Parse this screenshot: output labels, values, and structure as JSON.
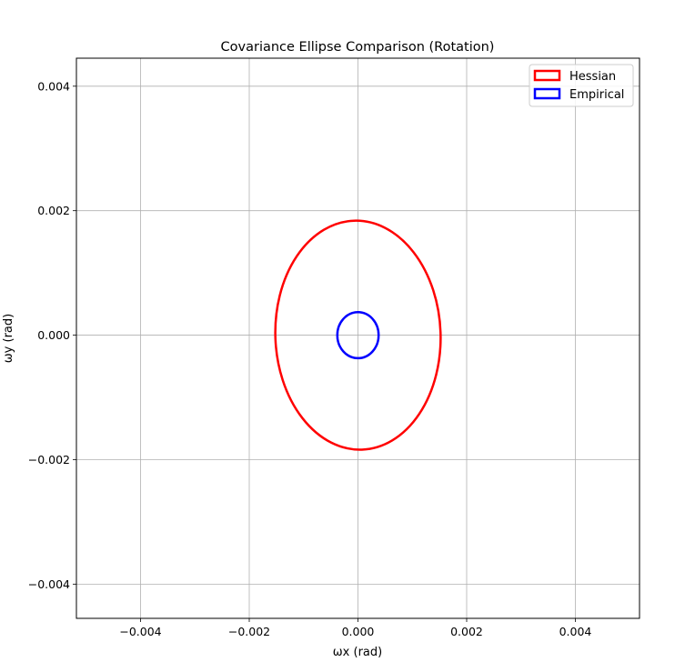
{
  "chart_data": {
    "type": "line",
    "title": "Covariance Ellipse Comparison (Rotation)",
    "xlabel": "ωx (rad)",
    "ylabel": "ωy (rad)",
    "xlim": [
      -0.00518,
      0.00518
    ],
    "ylim": [
      -0.00455,
      0.00445
    ],
    "xticks": [
      -0.004,
      -0.002,
      0.0,
      0.002,
      0.004
    ],
    "yticks": [
      -0.004,
      -0.002,
      0.0,
      0.002,
      0.004
    ],
    "xtick_labels": [
      "−0.004",
      "−0.002",
      "0.000",
      "0.002",
      "0.004"
    ],
    "ytick_labels": [
      "−0.004",
      "−0.002",
      "0.000",
      "0.002",
      "0.004"
    ],
    "grid": true,
    "legend_position": "top-right",
    "series": [
      {
        "name": "Hessian",
        "shape": "ellipse",
        "center": [
          0.0,
          0.0
        ],
        "semi_axes": [
          0.00152,
          0.00184
        ],
        "angle_deg": 2,
        "color": "#ff0000"
      },
      {
        "name": "Empirical",
        "shape": "ellipse",
        "center": [
          0.0,
          0.0
        ],
        "semi_axes": [
          0.00038,
          0.00037
        ],
        "angle_deg": 0,
        "color": "#0000ff"
      }
    ]
  }
}
